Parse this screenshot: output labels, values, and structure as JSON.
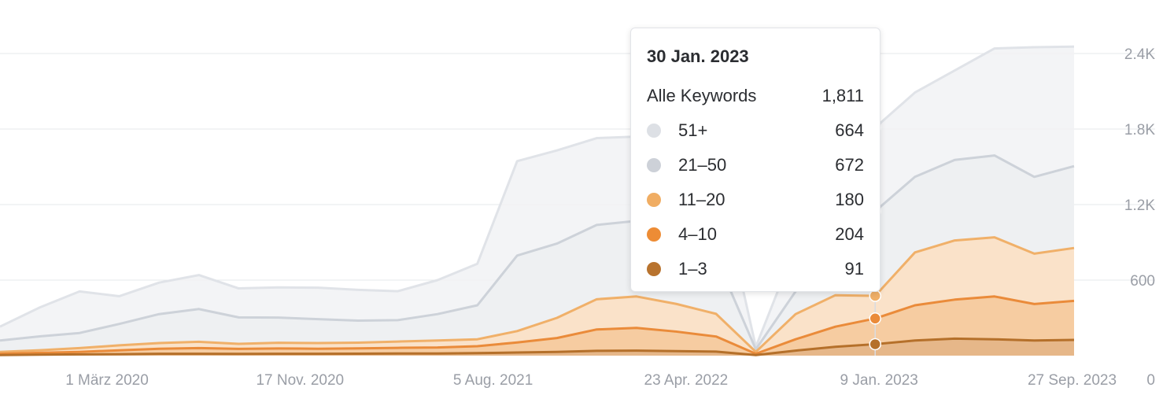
{
  "chart_data": {
    "type": "area",
    "y_axis_position": "right",
    "ylim": [
      0,
      2400
    ],
    "y_ticks": [
      "0",
      "600",
      "1.2K",
      "1.8K",
      "2.4K"
    ],
    "y_tick_values": [
      0,
      600,
      1200,
      1800,
      2400
    ],
    "x_tick_labels": [
      "1 März 2020",
      "17 Nov. 2020",
      "5 Aug. 2021",
      "23 Apr. 2022",
      "9 Jan. 2023",
      "27 Sep. 2023"
    ],
    "grid": "horizontal",
    "x": [
      "2019-08",
      "2019-10",
      "2019-12",
      "2020-02",
      "2020-04",
      "2020-06",
      "2020-08",
      "2020-10",
      "2020-12",
      "2021-02",
      "2021-04",
      "2021-06",
      "2021-08",
      "2021-10",
      "2021-12",
      "2022-02",
      "2022-04",
      "2022-06",
      "2022-08",
      "2022-09",
      "2022-10",
      "2022-12",
      "2023-01-30",
      "2023-03",
      "2023-05",
      "2023-07",
      "2023-09",
      "2023-10"
    ],
    "series": [
      {
        "name": "1–3",
        "color": "#b5702a",
        "values": [
          5,
          8,
          10,
          12,
          15,
          15,
          14,
          15,
          15,
          16,
          17,
          17,
          20,
          25,
          30,
          38,
          40,
          36,
          32,
          5,
          40,
          70,
          91,
          120,
          135,
          130,
          120,
          125
        ]
      },
      {
        "name": "4–10",
        "color": "#ea8b3a",
        "values": [
          10,
          15,
          20,
          30,
          40,
          45,
          40,
          42,
          40,
          42,
          45,
          48,
          55,
          80,
          110,
          170,
          180,
          155,
          120,
          10,
          90,
          160,
          204,
          280,
          310,
          340,
          290,
          310
        ]
      },
      {
        "name": "11–20",
        "color": "#f0b069",
        "values": [
          15,
          20,
          30,
          40,
          45,
          50,
          40,
          45,
          45,
          45,
          50,
          55,
          55,
          90,
          160,
          240,
          250,
          220,
          180,
          15,
          200,
          250,
          180,
          420,
          470,
          470,
          400,
          420
        ]
      },
      {
        "name": "21–50",
        "color": "#cdd2d9",
        "values": [
          90,
          110,
          120,
          170,
          230,
          260,
          210,
          200,
          190,
          175,
          170,
          210,
          270,
          600,
          590,
          590,
          600,
          500,
          450,
          20,
          180,
          330,
          672,
          600,
          640,
          650,
          610,
          650
        ]
      },
      {
        "name": "51+",
        "color": "#e0e3e8",
        "values": [
          110,
          230,
          330,
          220,
          250,
          270,
          230,
          240,
          250,
          245,
          230,
          270,
          330,
          750,
          740,
          690,
          670,
          660,
          700,
          20,
          360,
          620,
          664,
          670,
          710,
          850,
          1030,
          950
        ]
      }
    ],
    "highlight": {
      "index": 22,
      "totals": [
        91,
        295,
        475,
        1147,
        1811
      ]
    },
    "tooltip": {
      "date": "30 Jan. 2023",
      "total_label": "Alle Keywords",
      "total_value": "1,811",
      "rows": [
        {
          "label": "51+",
          "value": "664",
          "color": "#dde0e5"
        },
        {
          "label": "21–50",
          "value": "672",
          "color": "#cdd1d8"
        },
        {
          "label": "11–20",
          "value": "180",
          "color": "#f0ad63"
        },
        {
          "label": "4–10",
          "value": "204",
          "color": "#ed8c35"
        },
        {
          "label": "1–3",
          "value": "91",
          "color": "#b8732e"
        }
      ]
    }
  }
}
